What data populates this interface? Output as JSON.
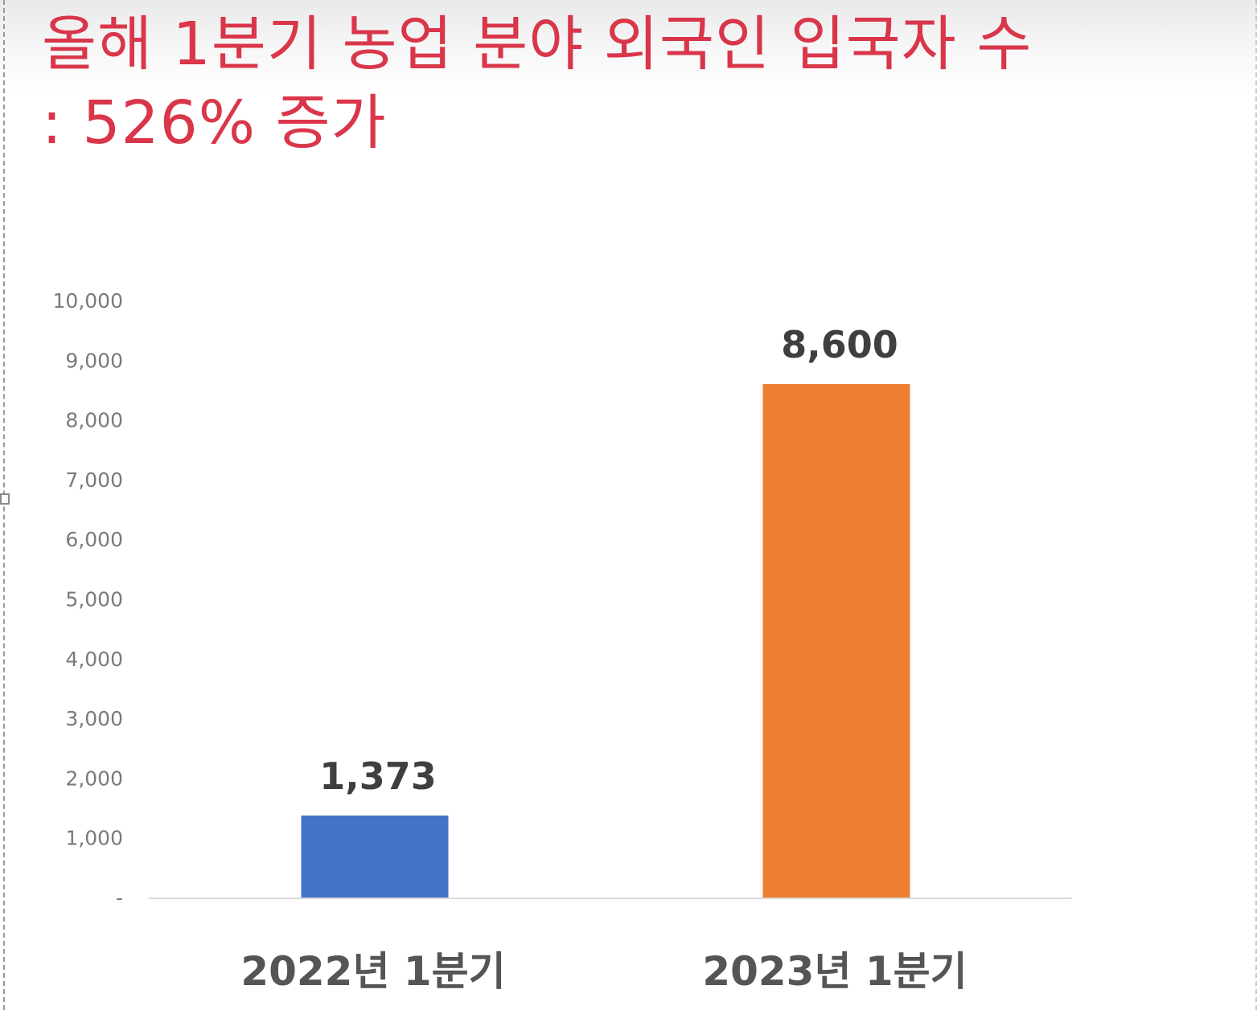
{
  "title": {
    "line1": "올해 1분기 농업 분야 외국인 입국자 수",
    "line2": ": 526% 증가"
  },
  "chart_data": {
    "type": "bar",
    "categories": [
      "2022년 1분기",
      "2023년 1분기"
    ],
    "values": [
      1373,
      8600
    ],
    "data_labels": [
      "1,373",
      "8,600"
    ],
    "colors": [
      "#4472c4",
      "#ed7d31"
    ],
    "ylim": [
      0,
      10000
    ],
    "y_ticks": [
      0,
      1000,
      2000,
      3000,
      4000,
      5000,
      6000,
      7000,
      8000,
      9000,
      10000
    ],
    "y_tick_labels": [
      "-",
      "1,000",
      "2,000",
      "3,000",
      "4,000",
      "5,000",
      "6,000",
      "7,000",
      "8,000",
      "9,000",
      "10,000"
    ],
    "grid": false,
    "legend": "none",
    "xlabel": "",
    "ylabel": ""
  }
}
